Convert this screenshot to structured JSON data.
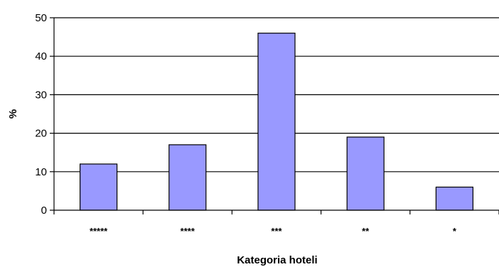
{
  "chart_data": {
    "type": "bar",
    "title": "",
    "xlabel": "Kategoria hoteli",
    "ylabel": "%",
    "categories": [
      "*****",
      "****",
      "***",
      "**",
      "*"
    ],
    "values": [
      12,
      17,
      46,
      19,
      6
    ],
    "ylim": [
      0,
      50
    ],
    "yticks": [
      "0",
      "10",
      "20",
      "30",
      "40",
      "50"
    ],
    "grid": true,
    "legend": "none",
    "bar_color": "#9999ff",
    "bar_stroke": "#000000"
  }
}
